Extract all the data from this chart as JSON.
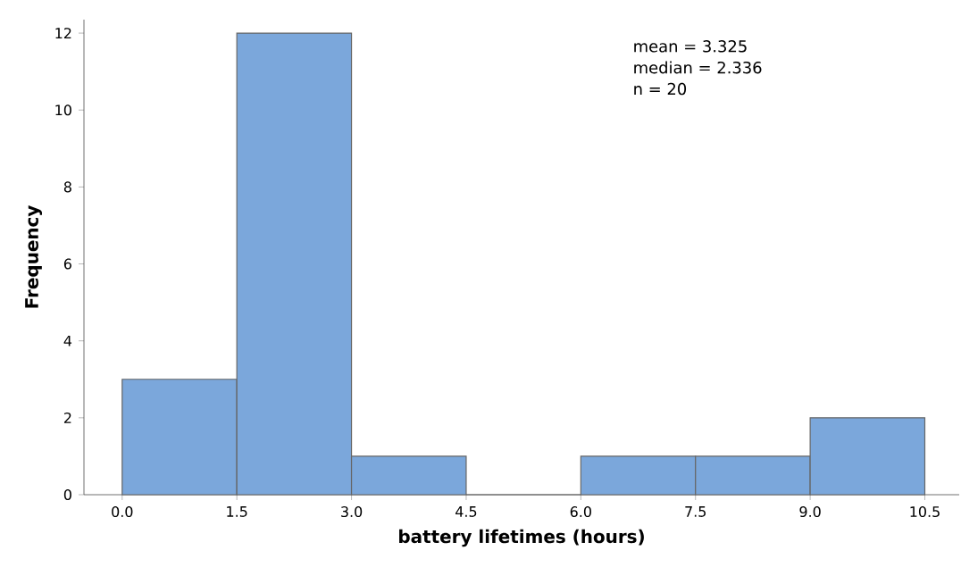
{
  "chart_data": {
    "type": "histogram",
    "bins": [
      0,
      1.5,
      3,
      4.5,
      6,
      7.5,
      9,
      10.5
    ],
    "values": [
      3,
      12,
      1,
      0,
      1,
      1,
      2
    ],
    "color": "#7ba7db",
    "xlabel": "battery lifetimes (hours)",
    "ylabel": "Frequency",
    "xlim": [
      -0.5,
      10.95
    ],
    "ylim": [
      0,
      12.35
    ],
    "xticks": [
      {
        "value": 0,
        "label": "0.0"
      },
      {
        "value": 1.5,
        "label": "1.5"
      },
      {
        "value": 3,
        "label": "3.0"
      },
      {
        "value": 4.5,
        "label": "4.5"
      },
      {
        "value": 6,
        "label": "6.0"
      },
      {
        "value": 7.5,
        "label": "7.5"
      },
      {
        "value": 9,
        "label": "9.0"
      },
      {
        "value": 10.5,
        "label": "10.5"
      }
    ],
    "yticks": [
      0,
      2,
      4,
      6,
      8,
      10,
      12
    ],
    "annotations": [
      "mean = 3.325",
      "median = 2.336",
      "n = 20"
    ]
  }
}
